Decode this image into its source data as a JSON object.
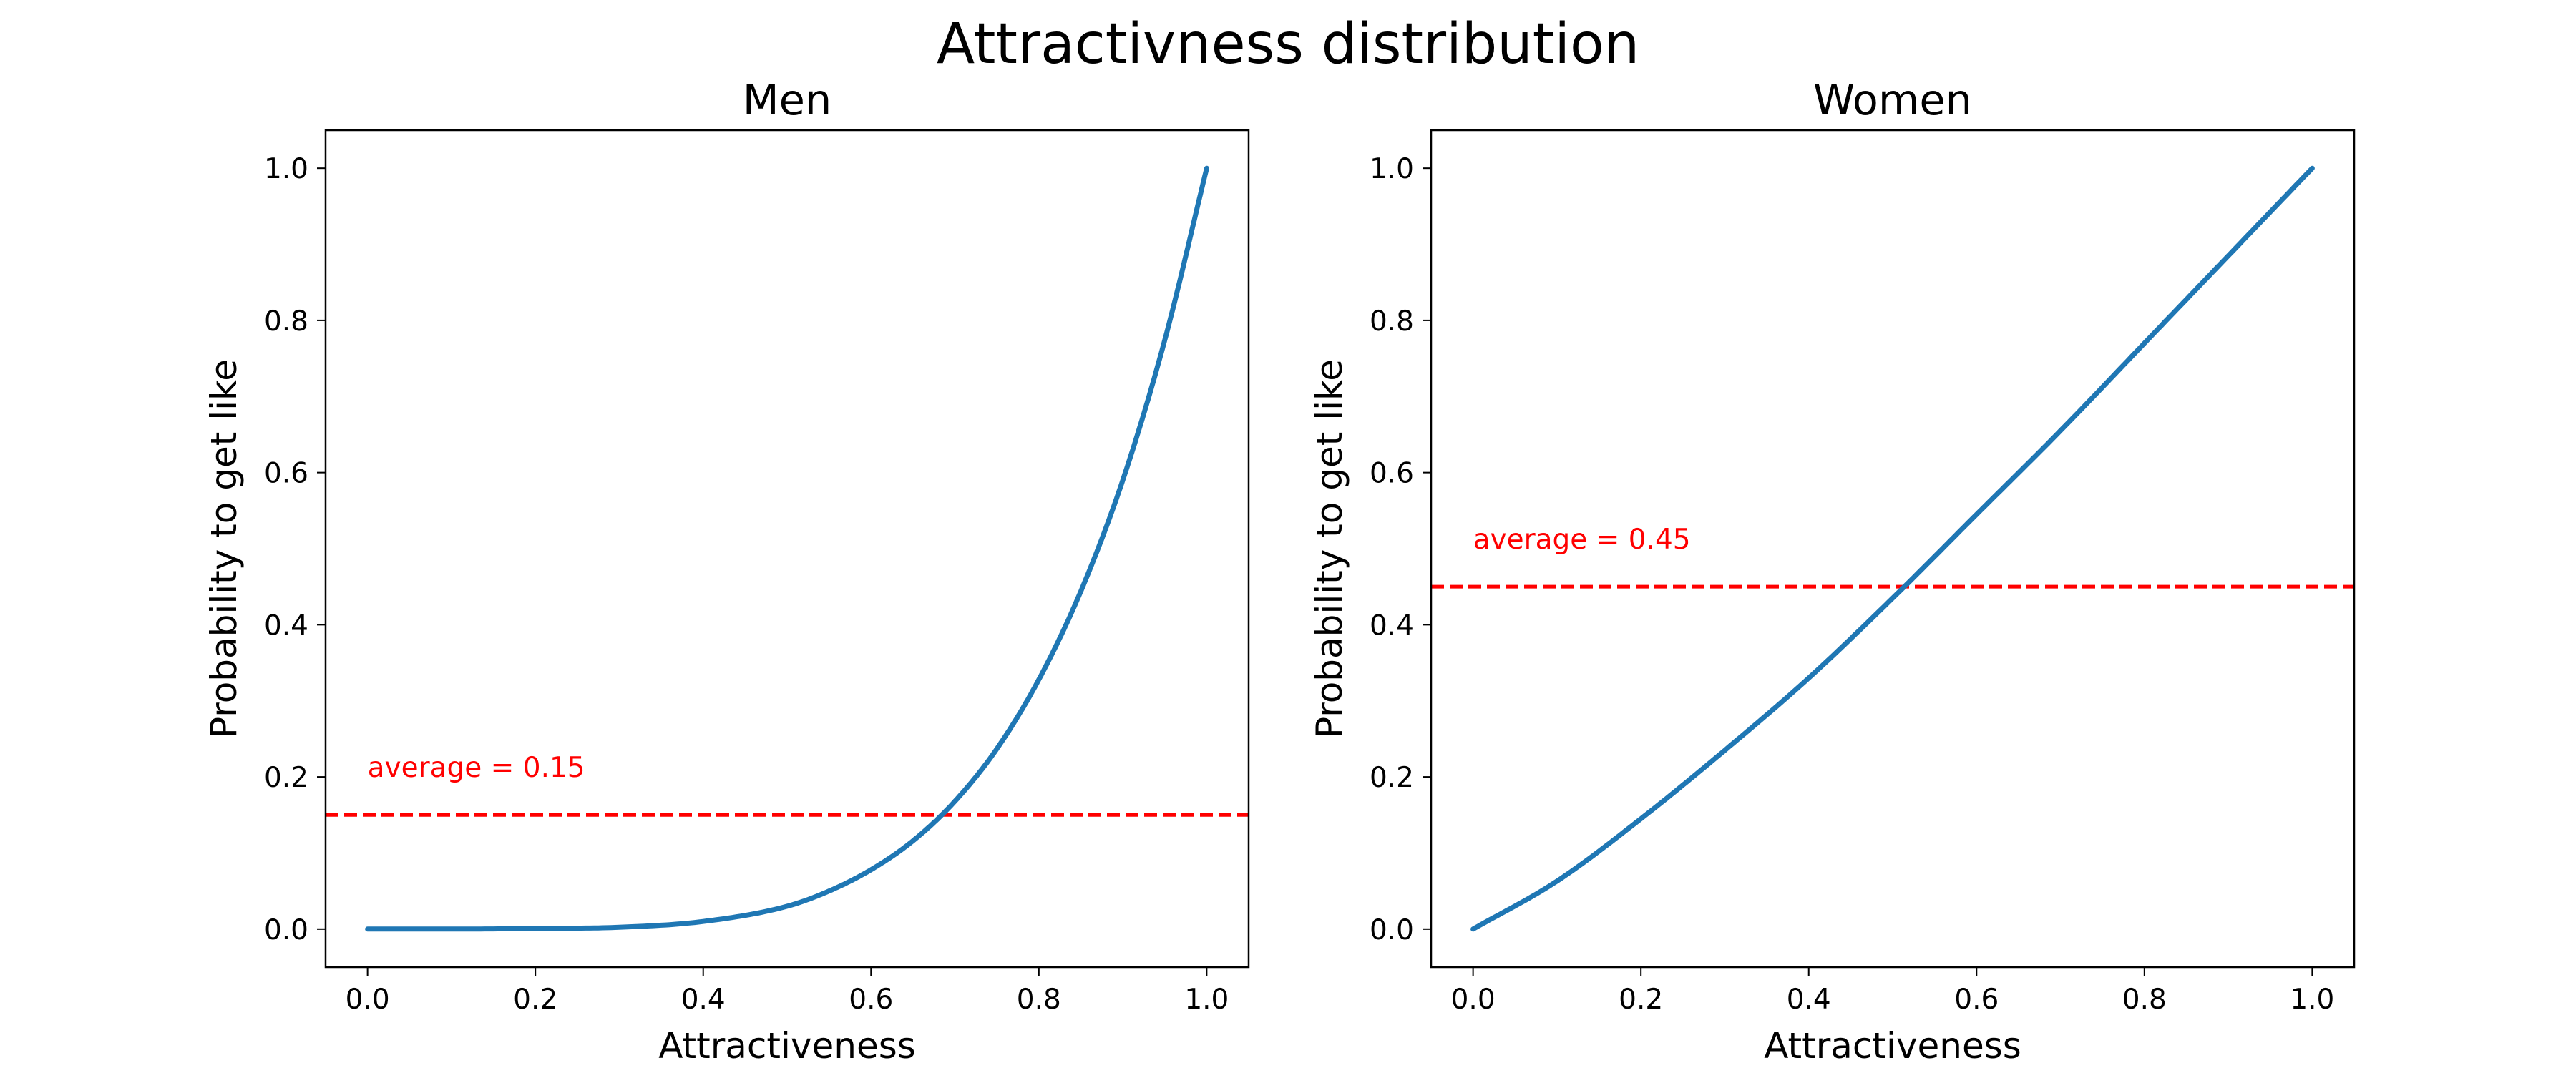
{
  "figure": {
    "title": "Attractivness distribution"
  },
  "chart_data": [
    {
      "type": "line",
      "title": "Men",
      "xlabel": "Attractiveness",
      "ylabel": "Probability to get like",
      "xlim": [
        -0.05,
        1.05
      ],
      "ylim": [
        -0.05,
        1.05
      ],
      "xticks": [
        "0.0",
        "0.2",
        "0.4",
        "0.6",
        "0.8",
        "1.0"
      ],
      "yticks": [
        "0.0",
        "0.2",
        "0.4",
        "0.6",
        "0.8",
        "1.0"
      ],
      "series": [
        {
          "color": "#1f77b4",
          "x": [
            0.0,
            0.1,
            0.2,
            0.3,
            0.4,
            0.5,
            0.55,
            0.6,
            0.65,
            0.7,
            0.75,
            0.8,
            0.85,
            0.9,
            0.95,
            1.0
          ],
          "y": [
            0.0,
            0.0,
            0.0008,
            0.0024,
            0.01,
            0.03,
            0.05,
            0.078,
            0.116,
            0.168,
            0.237,
            0.328,
            0.444,
            0.59,
            0.774,
            1.0
          ]
        }
      ],
      "hline": {
        "y": 0.15,
        "color": "#ff0000",
        "style": "dashed",
        "label": "average = 0.15"
      }
    },
    {
      "type": "line",
      "title": "Women",
      "xlabel": "Attractiveness",
      "ylabel": "Probability to get like",
      "xlim": [
        -0.05,
        1.05
      ],
      "ylim": [
        -0.05,
        1.05
      ],
      "xticks": [
        "0.0",
        "0.2",
        "0.4",
        "0.6",
        "0.8",
        "1.0"
      ],
      "yticks": [
        "0.0",
        "0.2",
        "0.4",
        "0.6",
        "0.8",
        "1.0"
      ],
      "series": [
        {
          "color": "#1f77b4",
          "x": [
            0.0,
            0.1,
            0.2,
            0.3,
            0.4,
            0.5,
            0.6,
            0.7,
            0.8,
            0.9,
            1.0
          ],
          "y": [
            0.0,
            0.063,
            0.145,
            0.235,
            0.33,
            0.435,
            0.545,
            0.655,
            0.77,
            0.885,
            1.0
          ]
        }
      ],
      "hline": {
        "y": 0.45,
        "color": "#ff0000",
        "style": "dashed",
        "label": "average = 0.45"
      }
    }
  ]
}
